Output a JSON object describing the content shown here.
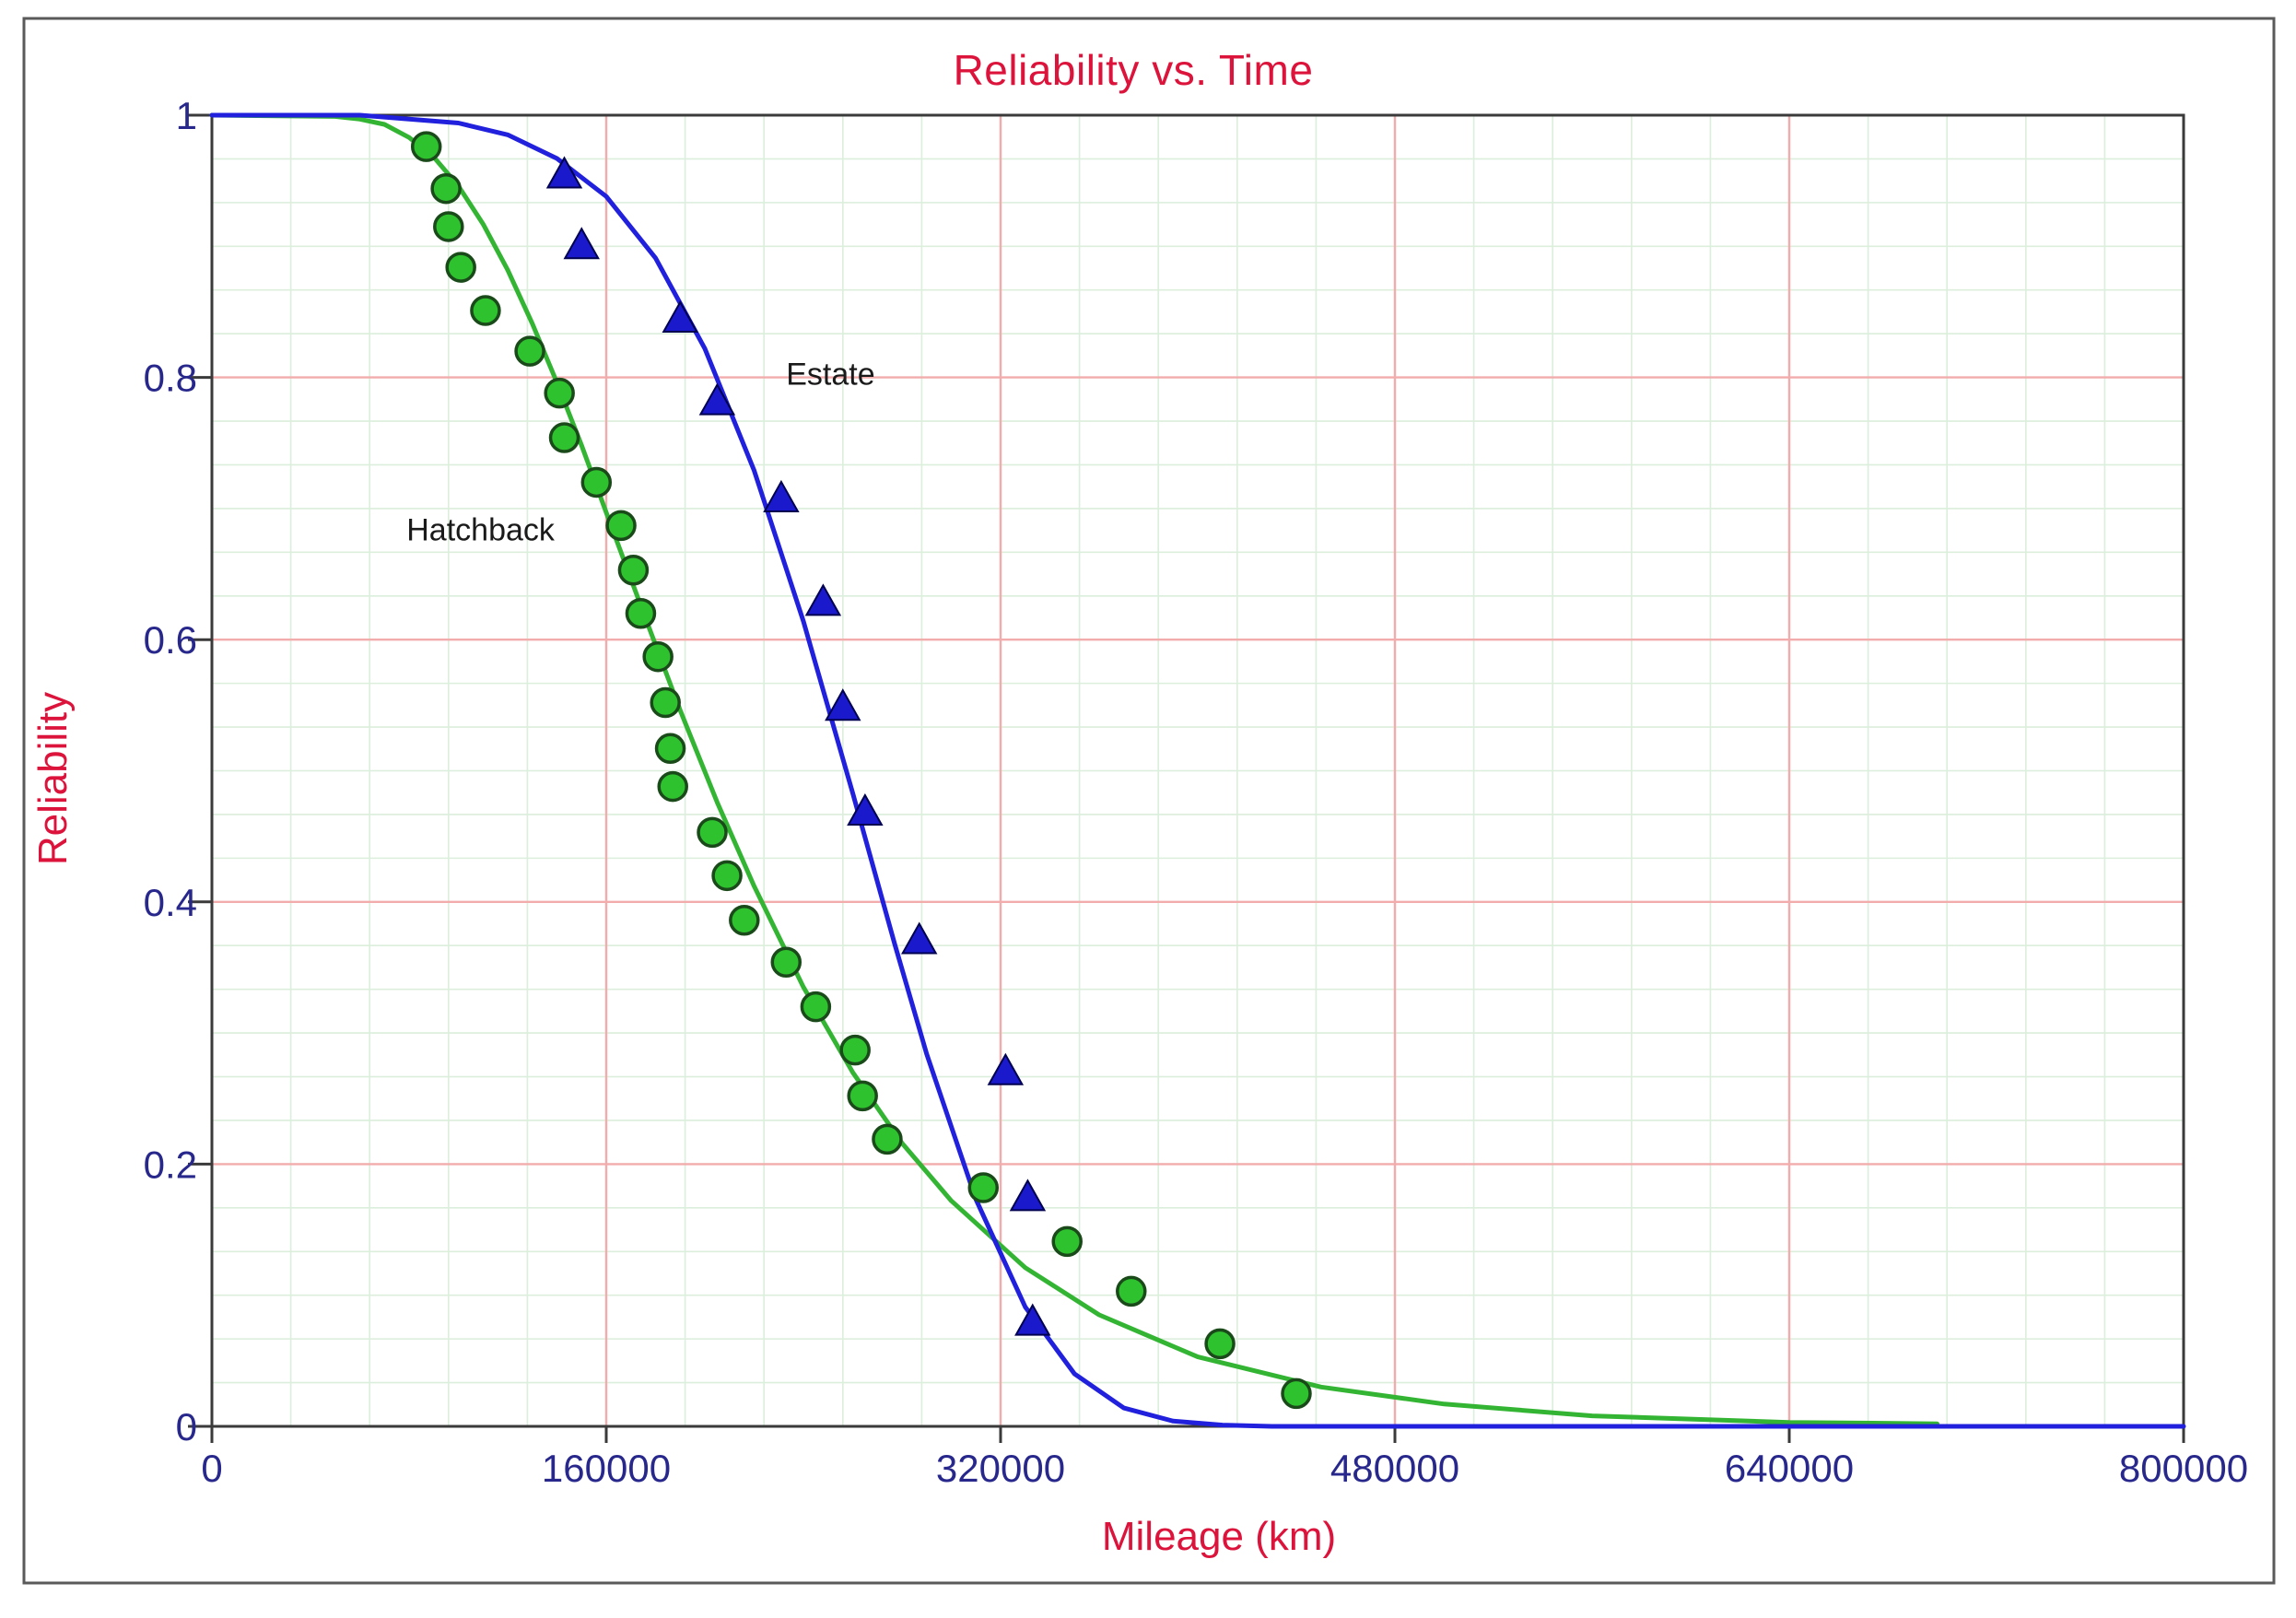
{
  "chart_data": {
    "type": "line",
    "title": "Reliability vs. Time",
    "xlabel": "Mileage (km)",
    "ylabel": "Reliability",
    "xlim": [
      0,
      800000
    ],
    "ylim": [
      0,
      1
    ],
    "x_ticks": {
      "values": [
        0,
        160000,
        320000,
        480000,
        640000,
        800000
      ],
      "labels": [
        "0",
        "160000",
        "320000",
        "480000",
        "640000",
        "800000"
      ]
    },
    "y_ticks": {
      "values": [
        0,
        0.2,
        0.4,
        0.6,
        0.8,
        1
      ],
      "labels": [
        "0",
        "0.2",
        "0.4",
        "0.6",
        "0.8",
        "1"
      ]
    },
    "grid": {
      "major_x_step": 160000,
      "minor_x_divisions_per_major": 5,
      "major_y_step": 0.2,
      "minor_y_divisions_per_major": 6,
      "major_color": "#F2ACAC",
      "minor_color": "#DCEEDC"
    },
    "legend_position": "inline-annotations",
    "series": [
      {
        "name": "Hatchback",
        "marker": "circle",
        "line_color": "#33B533",
        "marker_fill": "#2EC22E",
        "marker_edge": "#1A4A1A",
        "points": [
          [
            87000,
            0.976
          ],
          [
            95000,
            0.944
          ],
          [
            96000,
            0.915
          ],
          [
            101000,
            0.884
          ],
          [
            111000,
            0.851
          ],
          [
            129000,
            0.82
          ],
          [
            141000,
            0.788
          ],
          [
            143000,
            0.754
          ],
          [
            156000,
            0.72
          ],
          [
            166000,
            0.687
          ],
          [
            171000,
            0.653
          ],
          [
            174000,
            0.62
          ],
          [
            181000,
            0.587
          ],
          [
            184000,
            0.552
          ],
          [
            186000,
            0.517
          ],
          [
            187000,
            0.488
          ],
          [
            203000,
            0.453
          ],
          [
            209000,
            0.42
          ],
          [
            216000,
            0.386
          ],
          [
            233000,
            0.354
          ],
          [
            245000,
            0.32
          ],
          [
            261000,
            0.287
          ],
          [
            264000,
            0.252
          ],
          [
            274000,
            0.219
          ],
          [
            313000,
            0.182
          ],
          [
            347000,
            0.141
          ],
          [
            373000,
            0.103
          ],
          [
            409000,
            0.063
          ],
          [
            440000,
            0.025
          ]
        ],
        "fit_curve": [
          [
            0,
            1
          ],
          [
            50000,
            0.999
          ],
          [
            60000,
            0.997
          ],
          [
            70000,
            0.993
          ],
          [
            80000,
            0.983
          ],
          [
            90000,
            0.968
          ],
          [
            100000,
            0.946
          ],
          [
            110000,
            0.917
          ],
          [
            120000,
            0.882
          ],
          [
            130000,
            0.841
          ],
          [
            140000,
            0.796
          ],
          [
            150000,
            0.748
          ],
          [
            160000,
            0.697
          ],
          [
            175000,
            0.621
          ],
          [
            190000,
            0.546
          ],
          [
            205000,
            0.476
          ],
          [
            220000,
            0.412
          ],
          [
            240000,
            0.335
          ],
          [
            260000,
            0.27
          ],
          [
            280000,
            0.216
          ],
          [
            300000,
            0.172
          ],
          [
            330000,
            0.121
          ],
          [
            360000,
            0.085
          ],
          [
            400000,
            0.053
          ],
          [
            450000,
            0.03
          ],
          [
            500000,
            0.017
          ],
          [
            560000,
            0.008
          ],
          [
            640000,
            0.003
          ],
          [
            700000,
            0.002
          ]
        ]
      },
      {
        "name": "Estate",
        "marker": "triangle",
        "line_color": "#2020DD",
        "marker_fill": "#1A1ACC",
        "marker_edge": "#000050",
        "points": [
          [
            143000,
            0.954
          ],
          [
            150000,
            0.9
          ],
          [
            190000,
            0.844
          ],
          [
            205000,
            0.781
          ],
          [
            231000,
            0.707
          ],
          [
            248000,
            0.628
          ],
          [
            256000,
            0.548
          ],
          [
            265000,
            0.468
          ],
          [
            287000,
            0.37
          ],
          [
            322000,
            0.27
          ],
          [
            331000,
            0.174
          ],
          [
            333000,
            0.079
          ]
        ],
        "fit_curve": [
          [
            0,
            1
          ],
          [
            60000,
            1
          ],
          [
            100000,
            0.994
          ],
          [
            120000,
            0.985
          ],
          [
            140000,
            0.967
          ],
          [
            160000,
            0.938
          ],
          [
            180000,
            0.891
          ],
          [
            200000,
            0.822
          ],
          [
            220000,
            0.729
          ],
          [
            240000,
            0.614
          ],
          [
            260000,
            0.483
          ],
          [
            277000,
            0.368
          ],
          [
            290000,
            0.284
          ],
          [
            310000,
            0.173
          ],
          [
            330000,
            0.091
          ],
          [
            350000,
            0.04
          ],
          [
            370000,
            0.014
          ],
          [
            390000,
            0.004
          ],
          [
            410000,
            0.001
          ],
          [
            430000,
            0
          ],
          [
            800000,
            0
          ]
        ]
      }
    ],
    "annotations": [
      {
        "text": "Estate",
        "x": 251000,
        "y": 0.803
      },
      {
        "text": "Hatchback",
        "x": 109000,
        "y": 0.684
      }
    ],
    "colors": {
      "title": "#DC143C",
      "axis_titles": "#DC143C",
      "tick_labels": "#28288C",
      "axis": "#3A3A3A",
      "outer_border": "#5A5A5A",
      "background": "#FFFFFF"
    }
  }
}
